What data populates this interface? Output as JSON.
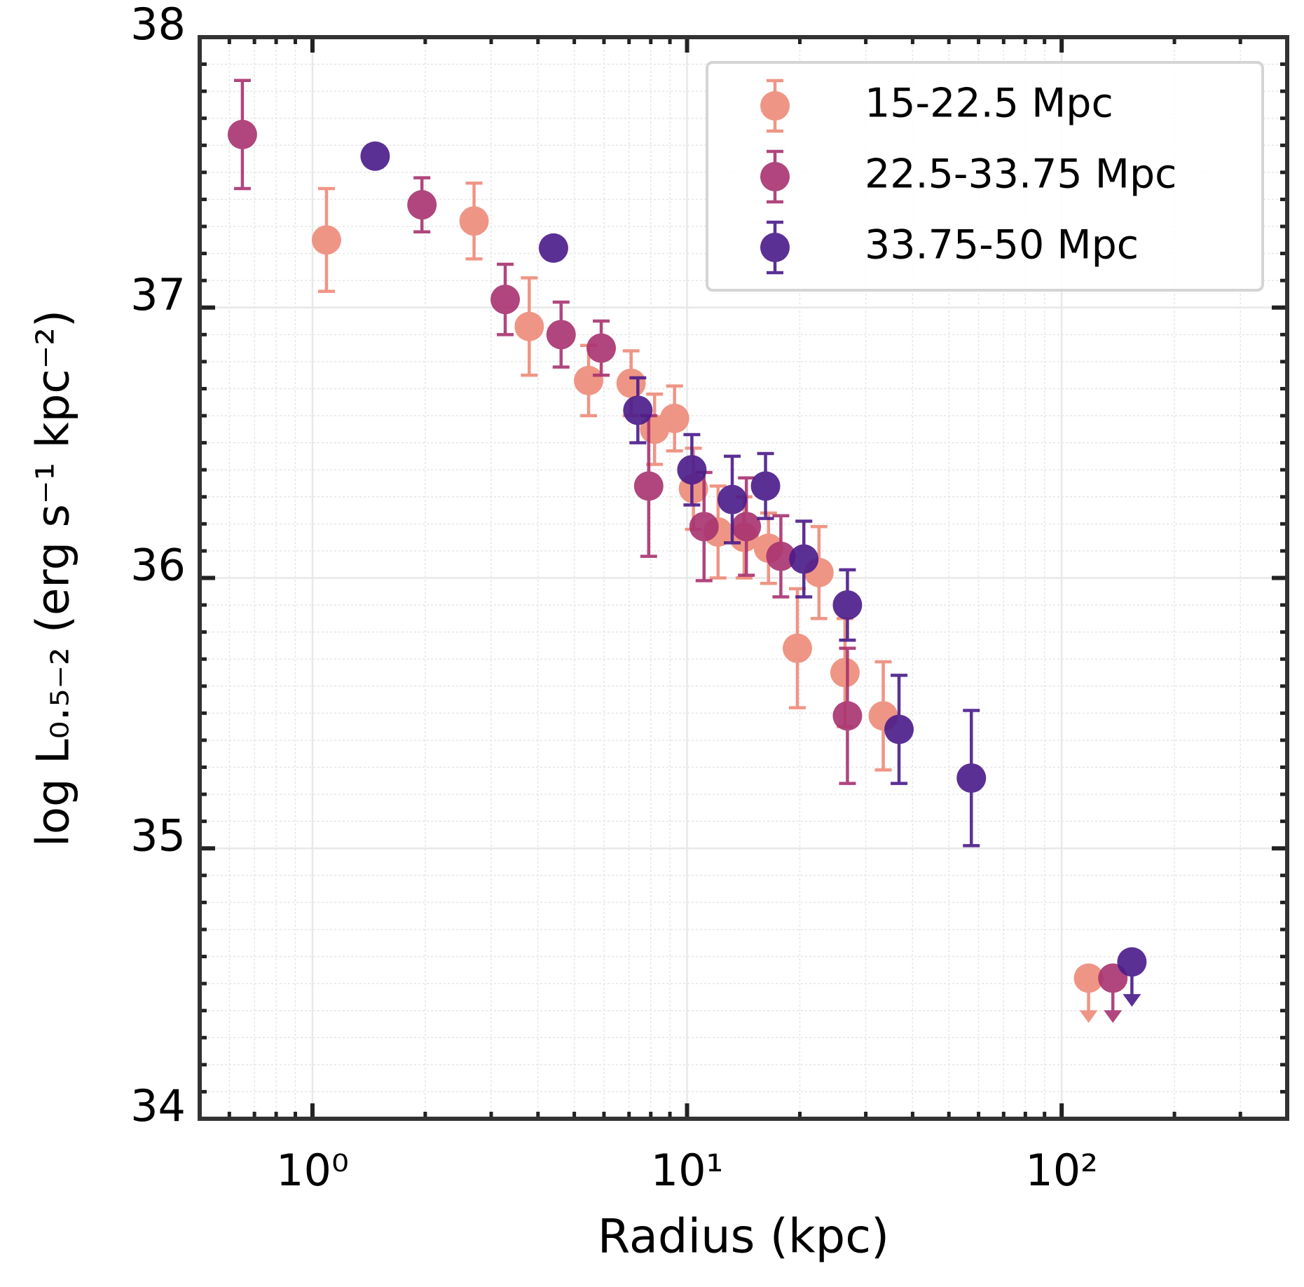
{
  "chart_data": {
    "type": "errorbar",
    "xlabel": "Radius (kpc)",
    "ylabel": "log L₀.₅₋₂ (erg s⁻¹ kpc⁻²)",
    "xscale": "log",
    "xlim": [
      0.5,
      400
    ],
    "ylim": [
      34,
      38
    ],
    "xticks": [
      {
        "value": 1,
        "label": "10⁰"
      },
      {
        "value": 10,
        "label": "10¹"
      },
      {
        "value": 100,
        "label": "10²"
      }
    ],
    "yticks": [
      34,
      35,
      36,
      37,
      38
    ],
    "grid": true,
    "legend": "upper right",
    "series": [
      {
        "name": "15-22.5 Mpc",
        "color": "#ee8a78",
        "x": [
          1.09,
          2.7,
          3.79,
          5.46,
          7.09,
          8.19,
          9.26,
          10.4,
          12.1,
          14.2,
          16.5,
          19.7,
          22.5,
          26.4,
          33.4,
          118
        ],
        "values": [
          37.25,
          37.32,
          36.93,
          36.73,
          36.72,
          36.55,
          36.59,
          36.33,
          36.17,
          36.15,
          36.11,
          35.74,
          36.02,
          35.65,
          35.49,
          34.52
        ],
        "errors": [
          0.19,
          0.14,
          0.18,
          0.13,
          0.12,
          0.13,
          0.12,
          0.15,
          0.17,
          0.15,
          0.13,
          0.22,
          0.17,
          0.2,
          0.2,
          0.15
        ],
        "uplims": [
          false,
          false,
          false,
          false,
          false,
          false,
          false,
          false,
          false,
          false,
          false,
          false,
          false,
          false,
          false,
          true
        ]
      },
      {
        "name": "22.5-33.75 Mpc",
        "color": "#a8326f",
        "x": [
          0.65,
          1.96,
          3.27,
          4.61,
          5.9,
          7.9,
          11.1,
          14.4,
          17.8,
          26.8,
          137
        ],
        "values": [
          37.64,
          37.38,
          37.03,
          36.9,
          36.85,
          36.34,
          36.19,
          36.19,
          36.08,
          35.49,
          34.52
        ],
        "errors": [
          0.2,
          0.1,
          0.13,
          0.12,
          0.1,
          0.26,
          0.2,
          0.18,
          0.15,
          0.25,
          0.15
        ],
        "uplims": [
          false,
          false,
          false,
          false,
          false,
          false,
          false,
          false,
          false,
          false,
          true
        ]
      },
      {
        "name": "33.75-50 Mpc",
        "color": "#4a1a8a",
        "x": [
          1.47,
          4.4,
          7.39,
          10.3,
          13.2,
          16.2,
          20.5,
          26.8,
          36.8,
          57.4,
          154
        ],
        "values": [
          37.56,
          37.22,
          36.62,
          36.4,
          36.29,
          36.34,
          36.07,
          35.9,
          35.44,
          35.26,
          34.58
        ],
        "errors": [
          0.04,
          0.03,
          0.12,
          0.13,
          0.16,
          0.12,
          0.14,
          0.13,
          0.2,
          0.25,
          0.15
        ],
        "uplims": [
          false,
          false,
          false,
          false,
          false,
          false,
          false,
          false,
          false,
          false,
          true
        ]
      }
    ]
  }
}
